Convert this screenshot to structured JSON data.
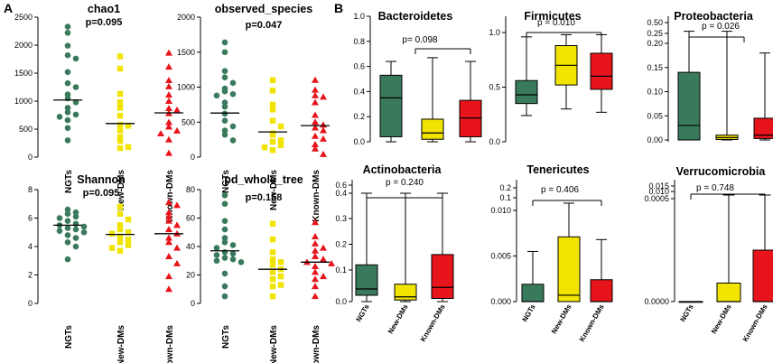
{
  "panel_labels": {
    "a": "A",
    "b": "B"
  },
  "colors": {
    "NGTs": "#3a7a5c",
    "New-DMs": "#f0e400",
    "Known-DMs": "#e8141b"
  },
  "chart_data": [
    {
      "type": "scatter",
      "panel": "A",
      "title": "chao1",
      "pvalue": "p=0.095",
      "categories": [
        "NGTs",
        "New-DMs",
        "Known-DMs"
      ],
      "marker": "circle",
      "ylim": [
        0,
        2500
      ],
      "yticks": [
        "0",
        "500",
        "1000",
        "1500",
        "2000",
        "2500"
      ],
      "series": [
        {
          "name": "NGTs",
          "mean": 1020,
          "values": [
            2330,
            2220,
            1990,
            1820,
            1760,
            1520,
            1320,
            1250,
            1120,
            1050,
            980,
            880,
            800,
            760,
            720,
            660,
            520,
            300
          ]
        },
        {
          "name": "New-DMs",
          "mean": 600,
          "values": [
            1800,
            1580,
            1130,
            980,
            880,
            740,
            580,
            560,
            480,
            360,
            290,
            180,
            160
          ]
        },
        {
          "name": "Known-DMs",
          "mean": 790,
          "values": [
            1860,
            1610,
            1370,
            1260,
            1110,
            1000,
            870,
            840,
            780,
            620,
            540,
            470,
            420,
            310,
            70
          ]
        }
      ]
    },
    {
      "type": "scatter",
      "panel": "A",
      "title": "observed_species",
      "pvalue": "p=0.047",
      "categories": [
        "NGTs",
        "New-DMs",
        "Known-DMs"
      ],
      "marker": "circle",
      "ylim": [
        0,
        2000
      ],
      "yticks": [
        "0",
        "500",
        "1000",
        "1500",
        "2000"
      ],
      "series": [
        {
          "name": "NGTs",
          "mean": 630,
          "values": [
            1640,
            1500,
            1230,
            1140,
            1060,
            980,
            940,
            900,
            880,
            780,
            720,
            620,
            520,
            440,
            380,
            320,
            240
          ]
        },
        {
          "name": "New-DMs",
          "mean": 360,
          "values": [
            1100,
            950,
            750,
            680,
            520,
            440,
            340,
            320,
            240,
            220,
            170,
            140,
            100
          ]
        },
        {
          "name": "Known-DMs",
          "mean": 450,
          "values": [
            1100,
            960,
            880,
            860,
            780,
            600,
            500,
            460,
            420,
            380,
            300,
            260,
            180,
            120,
            40
          ]
        }
      ]
    },
    {
      "type": "scatter",
      "panel": "A",
      "title": "Shannon",
      "pvalue": "p=0.095",
      "categories": [
        "NGTs",
        "New-DMs",
        "Known-DMs"
      ],
      "marker": "circle",
      "ylim": [
        0,
        8
      ],
      "yticks": [
        "0",
        "2",
        "4",
        "6",
        "8"
      ],
      "series": [
        {
          "name": "NGTs",
          "mean": 5.5,
          "values": [
            6.6,
            6.4,
            6.3,
            6.1,
            6.0,
            5.8,
            5.6,
            5.5,
            5.4,
            5.3,
            5.2,
            5.1,
            5.0,
            4.8,
            4.6,
            4.3,
            4.0,
            3.1
          ]
        },
        {
          "name": "New-DMs",
          "mean": 4.85,
          "values": [
            6.8,
            6.3,
            5.9,
            5.5,
            5.2,
            5.0,
            4.9,
            4.7,
            4.5,
            4.3,
            4.1,
            3.9,
            3.7
          ]
        },
        {
          "name": "Known-DMs",
          "mean": 4.9,
          "values": [
            7.1,
            6.9,
            6.4,
            6.1,
            5.8,
            5.5,
            5.2,
            4.9,
            4.6,
            4.3,
            3.9,
            3.3,
            2.8,
            1.9,
            1.0
          ]
        }
      ]
    },
    {
      "type": "scatter",
      "panel": "A",
      "title": "pd_whole_tree",
      "pvalue": "p=0.158",
      "categories": [
        "NGTs",
        "New-DMs",
        "Known-DMs"
      ],
      "marker": "circle",
      "ylim": [
        0,
        80
      ],
      "yticks": [
        "0",
        "20",
        "40",
        "60",
        "80"
      ],
      "series": [
        {
          "name": "NGTs",
          "mean": 37,
          "values": [
            76,
            70,
            58,
            52,
            46,
            43,
            41,
            39,
            36,
            35,
            34,
            32,
            31,
            30,
            29,
            21,
            12,
            5
          ]
        },
        {
          "name": "New-DMs",
          "mean": 24,
          "values": [
            56,
            45,
            36,
            31,
            29,
            27,
            24,
            22,
            19,
            17,
            13,
            12,
            5
          ]
        },
        {
          "name": "Known-DMs",
          "mean": 29,
          "values": [
            57,
            47,
            42,
            39,
            37,
            33,
            31,
            29,
            28,
            26,
            22,
            19,
            17,
            12,
            5
          ]
        }
      ]
    },
    {
      "type": "box",
      "panel": "B",
      "title": "Bacteroidetes",
      "pvalue": "p= 0.098",
      "bracket": "new-known",
      "categories": [
        "NGTs",
        "New-DMs",
        "Known-DMs"
      ],
      "yticks": [
        "0.0",
        "0.2",
        "0.4",
        "0.6",
        "0.8",
        "1.0"
      ],
      "series": [
        {
          "name": "NGTs",
          "min": 0.0,
          "q1": 0.04,
          "median": 0.35,
          "q3": 0.53,
          "max": 0.64
        },
        {
          "name": "New-DMs",
          "min": 0.0,
          "q1": 0.02,
          "median": 0.07,
          "q3": 0.18,
          "max": 0.67
        },
        {
          "name": "Known-DMs",
          "min": 0.0,
          "q1": 0.04,
          "median": 0.19,
          "q3": 0.33,
          "max": 0.64
        }
      ]
    },
    {
      "type": "box",
      "panel": "B",
      "title": "Firmicutes",
      "pvalue": "p = 0.010",
      "bracket": "ngt-known",
      "categories": [
        "NGTs",
        "New-DMs",
        "Known-DMs"
      ],
      "yticks": [
        "0.0",
        "0.5",
        "1.0"
      ],
      "series": [
        {
          "name": "NGTs",
          "min": 0.24,
          "q1": 0.35,
          "median": 0.43,
          "q3": 0.56,
          "max": 0.96
        },
        {
          "name": "New-DMs",
          "min": 0.3,
          "q1": 0.52,
          "median": 0.7,
          "q3": 0.88,
          "max": 0.98
        },
        {
          "name": "Known-DMs",
          "min": 0.27,
          "q1": 0.48,
          "median": 0.6,
          "q3": 0.81,
          "max": 0.98
        }
      ]
    },
    {
      "type": "box",
      "panel": "B",
      "title": "Proteobacteria",
      "pvalue": "p = 0.026",
      "bracket": "ngt-known",
      "categories": [
        "NGTs",
        "New-DMs",
        "Known-DMs"
      ],
      "yticks": [
        "0.00",
        "0.05",
        "0.10",
        "0.15",
        "0.20",
        "0.25",
        "0.50"
      ],
      "series": [
        {
          "name": "NGTs",
          "min": 0.0,
          "q1": 0.0,
          "median": 0.03,
          "q3": 0.14,
          "max": 0.3
        },
        {
          "name": "New-DMs",
          "min": 0.0,
          "q1": 0.001,
          "median": 0.005,
          "q3": 0.01,
          "max": 0.3
        },
        {
          "name": "Known-DMs",
          "min": 0.0,
          "q1": 0.003,
          "median": 0.01,
          "q3": 0.045,
          "max": 0.18
        }
      ]
    },
    {
      "type": "box",
      "panel": "B",
      "title": "Actinobacteria",
      "pvalue": "p = 0.240",
      "bracket": "ngt-known",
      "categories": [
        "NGTs",
        "New-DMs",
        "Known-DMs"
      ],
      "yticks": [
        "0.0",
        "0.1",
        "0.2",
        "0.3",
        "0.4",
        "0.6"
      ],
      "series": [
        {
          "name": "NGTs",
          "min": 0.0,
          "q1": 0.02,
          "median": 0.04,
          "q3": 0.12,
          "max": 0.4
        },
        {
          "name": "New-DMs",
          "min": 0.0,
          "q1": 0.005,
          "median": 0.015,
          "q3": 0.055,
          "max": 0.4
        },
        {
          "name": "Known-DMs",
          "min": 0.0,
          "q1": 0.01,
          "median": 0.045,
          "q3": 0.16,
          "max": 0.4
        }
      ]
    },
    {
      "type": "box",
      "panel": "B",
      "title": "Tenericutes",
      "pvalue": "p = 0.406",
      "bracket": "ngt-known",
      "categories": [
        "NGTs",
        "New-DMs",
        "Known-DMs"
      ],
      "yticks": [
        "0.000",
        "0.005",
        "0.010",
        "0.1",
        "0.2"
      ],
      "series": [
        {
          "name": "NGTs",
          "min": 0.0,
          "q1": 0.0,
          "median": 0.0,
          "q3": 0.0019,
          "max": 0.0055
        },
        {
          "name": "New-DMs",
          "min": 0.0,
          "q1": 0.0,
          "median": 0.0007,
          "q3": 0.0071,
          "max": 0.0117
        },
        {
          "name": "Known-DMs",
          "min": 0.0,
          "q1": 0.0,
          "median": 0.0,
          "q3": 0.0024,
          "max": 0.0068
        }
      ]
    },
    {
      "type": "box",
      "panel": "B",
      "title": "Verrucomicrobia",
      "pvalue": "p = 0.748",
      "bracket": "ngt-known",
      "categories": [
        "NGTs",
        "New-DMs",
        "Known-DMs"
      ],
      "yticks": [
        "0.0000",
        "0.0005",
        "0.010",
        "0.015"
      ],
      "series": [
        {
          "name": "NGTs",
          "min": 0.0,
          "q1": 0.0,
          "median": 0.0,
          "q3": 0.0,
          "max": 0.0
        },
        {
          "name": "New-DMs",
          "min": 0.0,
          "q1": 0.0,
          "median": 0.0,
          "q3": 9e-05,
          "max": 0.00052
        },
        {
          "name": "Known-DMs",
          "min": 0.0,
          "q1": 0.0,
          "median": 0.0,
          "q3": 0.00025,
          "max": 0.00052
        }
      ]
    }
  ]
}
